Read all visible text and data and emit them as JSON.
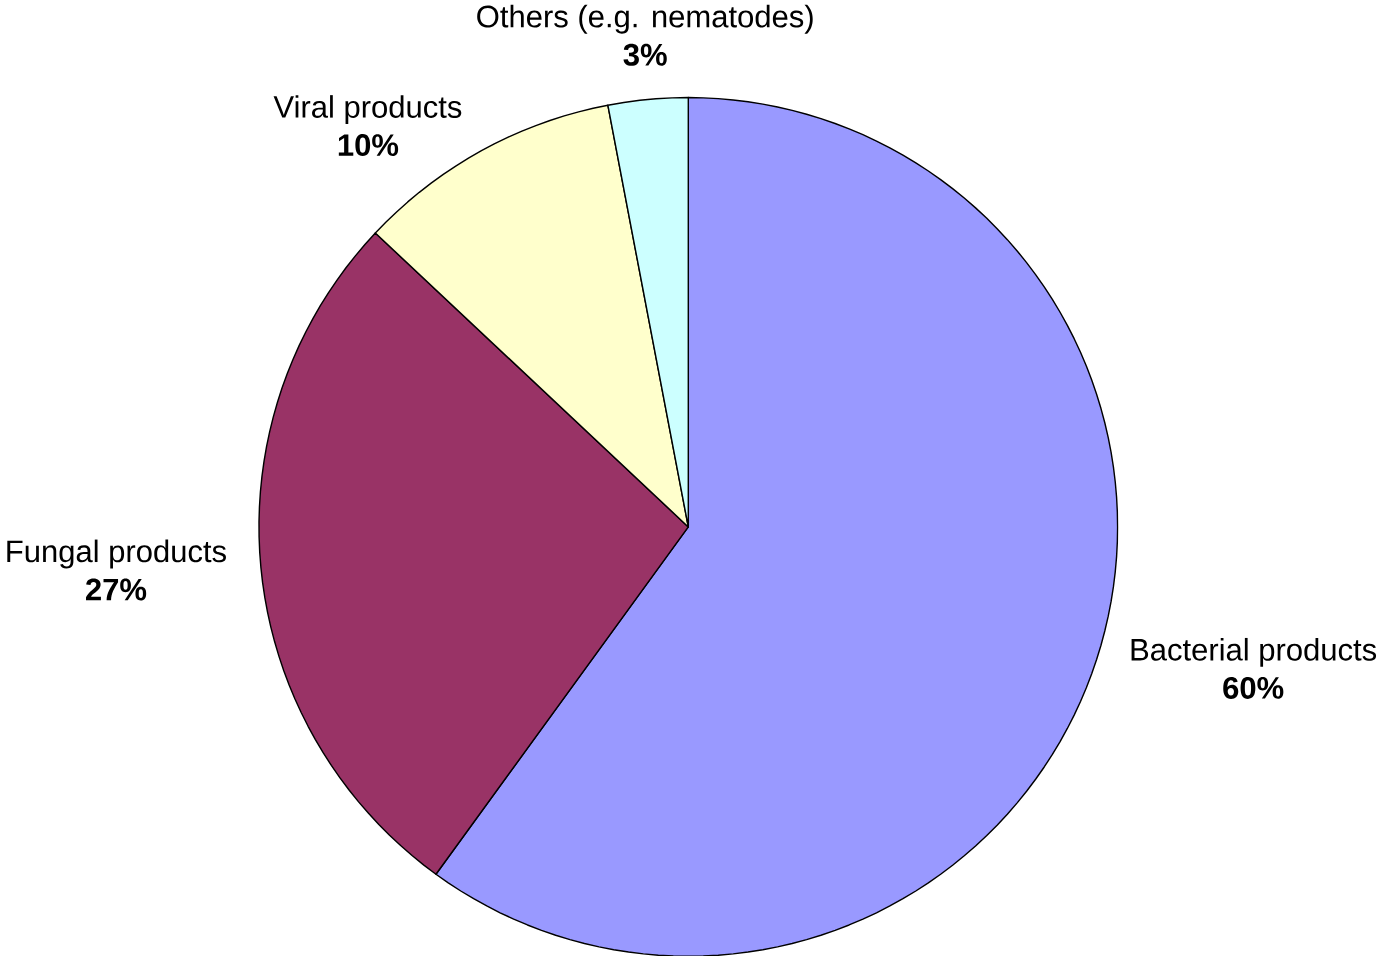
{
  "chart_data": {
    "type": "pie",
    "categories": [
      "Bacterial products",
      "Fungal products",
      "Viral products",
      "Others (e.g. nematodes)"
    ],
    "values": [
      60,
      27,
      10,
      3
    ],
    "colors": [
      "#9999ff",
      "#993366",
      "#ffffcc",
      "#ccffff"
    ],
    "value_labels": [
      "60%",
      "27%",
      "10%",
      "3%"
    ]
  }
}
